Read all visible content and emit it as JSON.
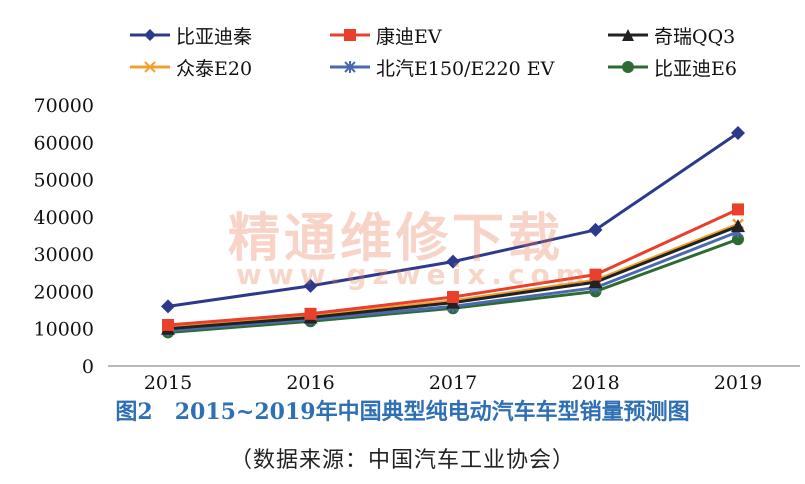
{
  "chart_data": {
    "type": "line",
    "categories": [
      "2015",
      "2016",
      "2017",
      "2018",
      "2019"
    ],
    "ylim": [
      0,
      70000
    ],
    "yticks": [
      0,
      10000,
      20000,
      30000,
      40000,
      50000,
      60000,
      70000
    ],
    "legend_position": "top",
    "grid": false,
    "series": [
      {
        "name": "比亚迪秦",
        "color": "#2d3a8c",
        "marker": "diamond",
        "values": [
          16000,
          21500,
          28000,
          36500,
          62500
        ]
      },
      {
        "name": "康迪EV",
        "color": "#e8402a",
        "marker": "square",
        "values": [
          11000,
          14000,
          18500,
          24500,
          42000
        ]
      },
      {
        "name": "奇瑞QQ3",
        "color": "#222222",
        "marker": "triangle",
        "values": [
          10000,
          13000,
          17000,
          22500,
          37500
        ]
      },
      {
        "name": "众泰E20",
        "color": "#f0a030",
        "marker": "x",
        "values": [
          10500,
          13500,
          17500,
          23000,
          38000
        ]
      },
      {
        "name": "北汽E150/E220 EV",
        "color": "#4a6ab0",
        "marker": "star",
        "values": [
          9500,
          12500,
          16000,
          21000,
          36000
        ]
      },
      {
        "name": "比亚迪E6",
        "color": "#2e6b30",
        "marker": "circle",
        "values": [
          9000,
          12000,
          15500,
          20000,
          34000
        ]
      }
    ]
  },
  "watermark": {
    "text": "精通维修下载",
    "url": "www.gzweix.com"
  },
  "caption": {
    "number": "图2",
    "title": "2015~2019年中国典型纯电动汽车车型销量预测图"
  },
  "source": "（数据来源：中国汽车工业协会）"
}
